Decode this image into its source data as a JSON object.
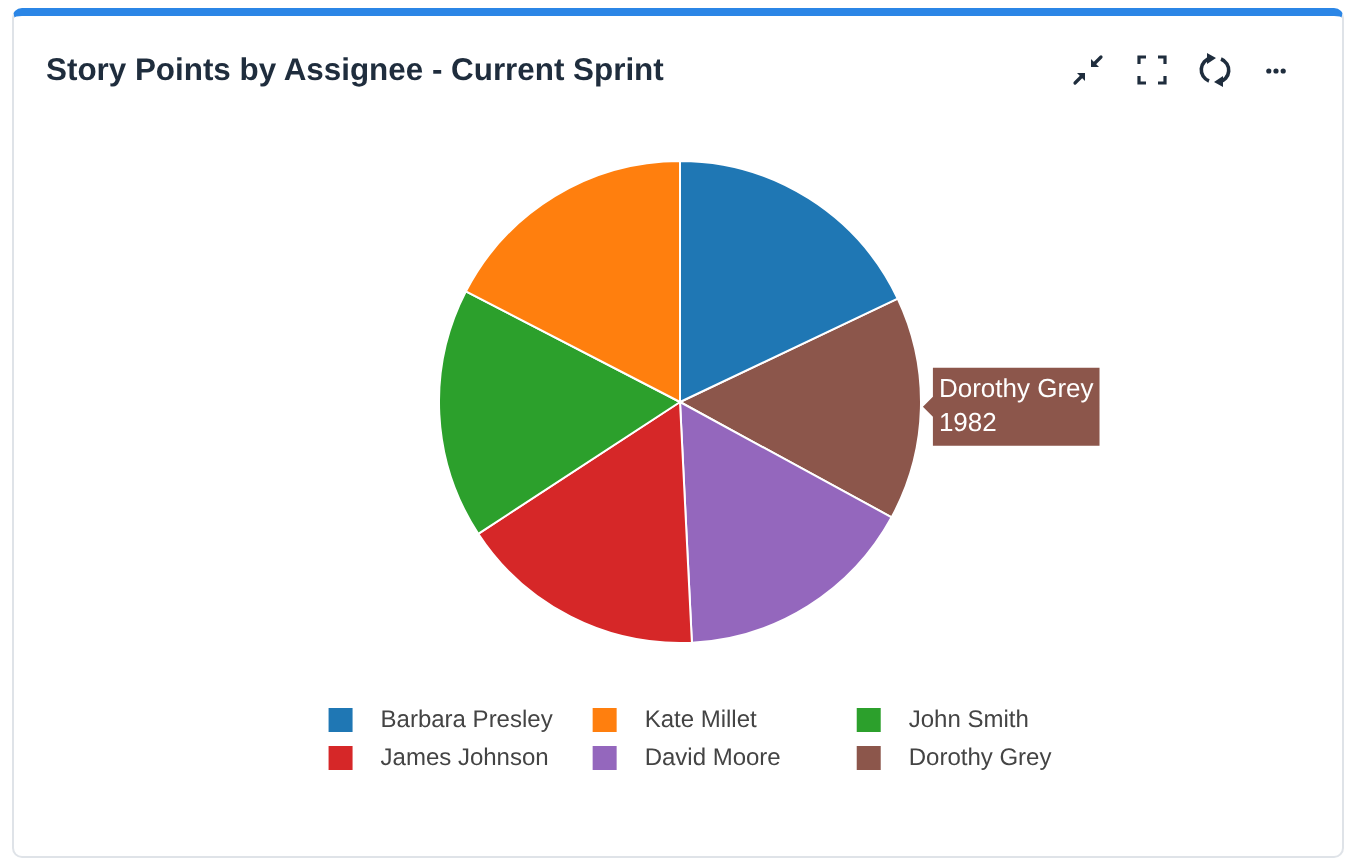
{
  "chart_data": {
    "type": "pie",
    "title": "Story Points by Assignee - Current Sprint",
    "categories": [
      "Barbara Presley",
      "Kate Millet",
      "John Smith",
      "James Johnson",
      "David Moore",
      "Dorothy Grey"
    ],
    "values": [
      2370,
      2300,
      2220,
      2190,
      2150,
      1982
    ],
    "colors": [
      "#1f77b4",
      "#ff7f0e",
      "#2ca02c",
      "#d62728",
      "#9467bd",
      "#8c564b"
    ],
    "value_labels": [
      null,
      null,
      null,
      null,
      null,
      "1982"
    ],
    "legend": "bottom"
  }
}
